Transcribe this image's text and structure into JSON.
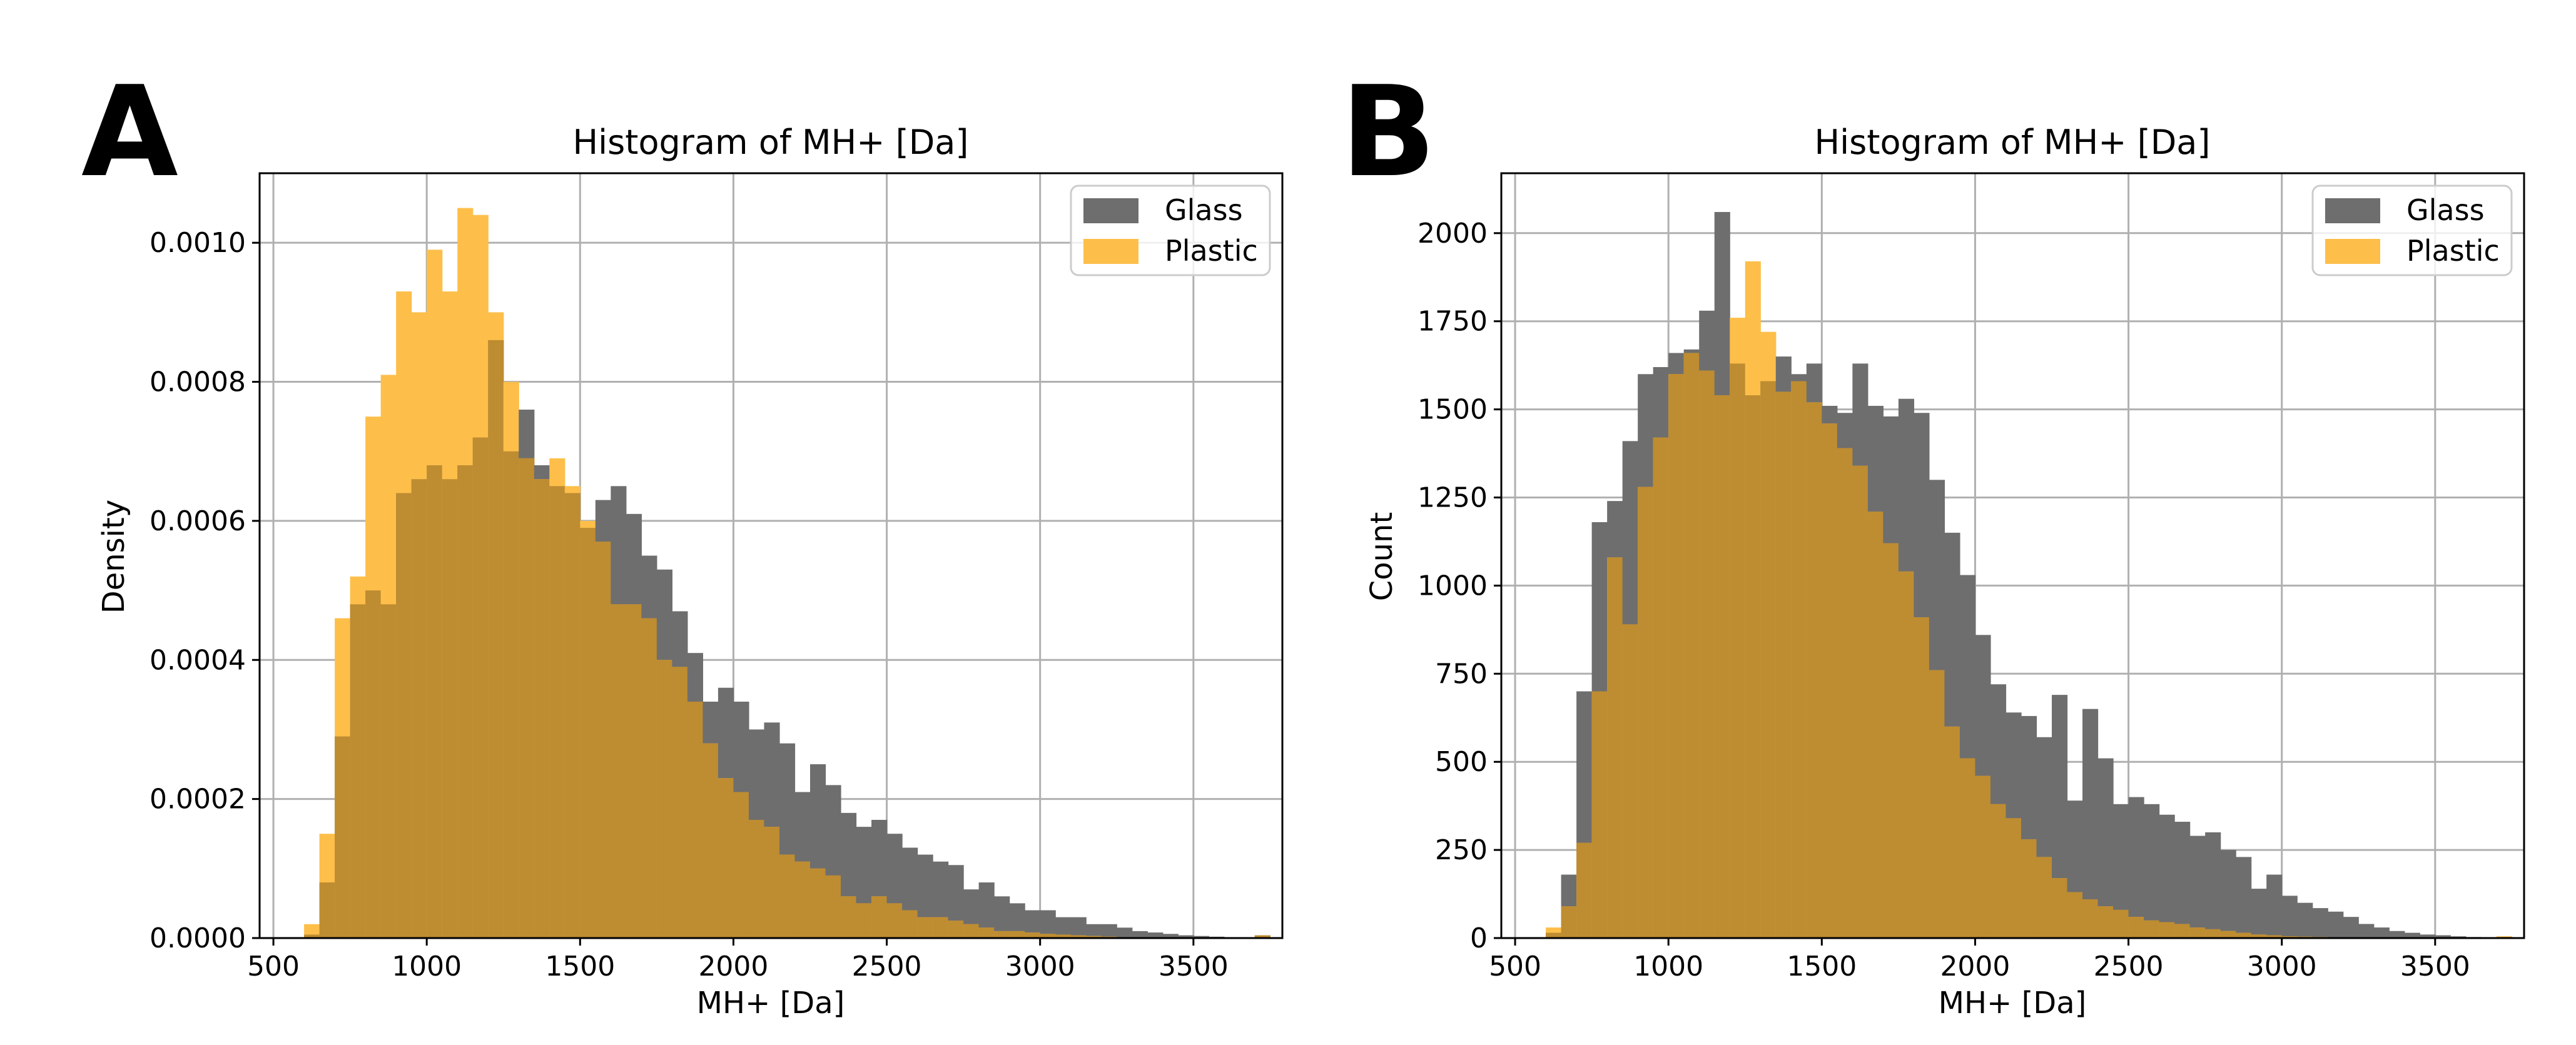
{
  "colors": {
    "glass": "#6e6e6e",
    "plastic": "#fdbf4a",
    "overlap": "#be8c31",
    "grid": "#b0b0b0"
  },
  "chart_data": [
    {
      "panel": "A",
      "type": "bar",
      "title": "Histogram of MH+ [Da]",
      "xlabel": "MH+ [Da]",
      "ylabel": "Density",
      "xlim": [
        455,
        3790
      ],
      "ylim": [
        0,
        0.0011
      ],
      "xticks": [
        500,
        1000,
        1500,
        2000,
        2500,
        3000,
        3500
      ],
      "yticks": [
        0,
        0.0002,
        0.0004,
        0.0006,
        0.0008,
        0.001
      ],
      "ytick_labels": [
        "0.0000",
        "0.0002",
        "0.0004",
        "0.0006",
        "0.0008",
        "0.0010"
      ],
      "grid": true,
      "legend_position": "top-right",
      "legend": [
        "Glass",
        "Plastic"
      ],
      "bin_edges": [
        600,
        650,
        700,
        750,
        800,
        850,
        900,
        950,
        1000,
        1050,
        1100,
        1150,
        1200,
        1250,
        1300,
        1350,
        1400,
        1450,
        1500,
        1550,
        1600,
        1650,
        1700,
        1750,
        1800,
        1850,
        1900,
        1950,
        2000,
        2050,
        2100,
        2150,
        2200,
        2250,
        2300,
        2350,
        2400,
        2450,
        2500,
        2550,
        2600,
        2650,
        2700,
        2750,
        2800,
        2850,
        2900,
        2950,
        3000,
        3050,
        3100,
        3150,
        3200,
        3250,
        3300,
        3350,
        3400,
        3450,
        3500,
        3550,
        3600,
        3650,
        3700,
        3750
      ],
      "series": [
        {
          "name": "Glass",
          "values": [
            5e-06,
            8e-05,
            0.00029,
            0.00048,
            0.0005,
            0.00048,
            0.00064,
            0.00066,
            0.00068,
            0.00066,
            0.00068,
            0.00072,
            0.00086,
            0.0007,
            0.00076,
            0.00068,
            0.00065,
            0.00064,
            0.00059,
            0.00063,
            0.00065,
            0.00061,
            0.00055,
            0.00053,
            0.00047,
            0.00041,
            0.00034,
            0.00036,
            0.00034,
            0.0003,
            0.00031,
            0.00028,
            0.00021,
            0.00025,
            0.00022,
            0.00018,
            0.00016,
            0.00017,
            0.00015,
            0.00013,
            0.00012,
            0.00011,
            0.000105,
            7e-05,
            8e-05,
            6e-05,
            5e-05,
            4e-05,
            4e-05,
            3e-05,
            3e-05,
            2e-05,
            2e-05,
            1.5e-05,
            1e-05,
            8e-06,
            6e-06,
            4e-06,
            3e-06,
            2e-06,
            1e-06,
            1e-06,
            4e-06
          ]
        },
        {
          "name": "Plastic",
          "values": [
            2e-05,
            0.00015,
            0.00046,
            0.00052,
            0.00075,
            0.00081,
            0.00093,
            0.0009,
            0.00099,
            0.00093,
            0.00105,
            0.00104,
            0.0009,
            0.0008,
            0.00069,
            0.00066,
            0.00069,
            0.00065,
            0.0006,
            0.00057,
            0.00048,
            0.00048,
            0.00046,
            0.0004,
            0.00039,
            0.00034,
            0.00028,
            0.00023,
            0.00021,
            0.00017,
            0.00016,
            0.00012,
            0.00011,
            0.0001,
            9e-05,
            6e-05,
            5e-05,
            6e-05,
            5e-05,
            4e-05,
            3e-05,
            3e-05,
            2.5e-05,
            2e-05,
            1.5e-05,
            1e-05,
            1e-05,
            8e-06,
            6e-06,
            5e-06,
            4e-06,
            3e-06,
            2e-06,
            1e-06,
            1e-06,
            1e-06,
            1e-06,
            1e-06,
            5e-07,
            5e-07,
            5e-07,
            5e-07,
            4e-06
          ]
        }
      ]
    },
    {
      "panel": "B",
      "type": "bar",
      "title": "Histogram of MH+ [Da]",
      "xlabel": "MH+ [Da]",
      "ylabel": "Count",
      "xlim": [
        455,
        3790
      ],
      "ylim": [
        0,
        2170
      ],
      "xticks": [
        500,
        1000,
        1500,
        2000,
        2500,
        3000,
        3500
      ],
      "yticks": [
        0,
        250,
        500,
        750,
        1000,
        1250,
        1500,
        1750,
        2000
      ],
      "ytick_labels": [
        "0",
        "250",
        "500",
        "750",
        "1000",
        "1250",
        "1500",
        "1750",
        "2000"
      ],
      "grid": true,
      "legend_position": "top-right",
      "legend": [
        "Glass",
        "Plastic"
      ],
      "bin_edges": [
        600,
        650,
        700,
        750,
        800,
        850,
        900,
        950,
        1000,
        1050,
        1100,
        1150,
        1200,
        1250,
        1300,
        1350,
        1400,
        1450,
        1500,
        1550,
        1600,
        1650,
        1700,
        1750,
        1800,
        1850,
        1900,
        1950,
        2000,
        2050,
        2100,
        2150,
        2200,
        2250,
        2300,
        2350,
        2400,
        2450,
        2500,
        2550,
        2600,
        2650,
        2700,
        2750,
        2800,
        2850,
        2900,
        2950,
        3000,
        3050,
        3100,
        3150,
        3200,
        3250,
        3300,
        3350,
        3400,
        3450,
        3500,
        3550,
        3600,
        3650,
        3700,
        3750
      ],
      "series": [
        {
          "name": "Glass",
          "values": [
            15,
            180,
            700,
            1180,
            1240,
            1410,
            1600,
            1620,
            1660,
            1670,
            1780,
            2060,
            1630,
            1540,
            1580,
            1650,
            1600,
            1630,
            1510,
            1490,
            1630,
            1510,
            1480,
            1530,
            1490,
            1300,
            1150,
            1030,
            860,
            720,
            640,
            630,
            570,
            690,
            390,
            650,
            510,
            380,
            400,
            380,
            350,
            330,
            290,
            300,
            250,
            230,
            140,
            180,
            120,
            100,
            85,
            75,
            60,
            40,
            30,
            20,
            15,
            10,
            8,
            5,
            3,
            2,
            3
          ]
        },
        {
          "name": "Plastic",
          "values": [
            30,
            90,
            270,
            700,
            1080,
            890,
            1280,
            1420,
            1600,
            1660,
            1610,
            1540,
            1760,
            1920,
            1720,
            1550,
            1580,
            1520,
            1460,
            1390,
            1340,
            1210,
            1120,
            1040,
            910,
            760,
            600,
            510,
            460,
            380,
            340,
            280,
            230,
            170,
            130,
            110,
            90,
            80,
            60,
            50,
            45,
            40,
            30,
            25,
            20,
            15,
            10,
            8,
            5,
            4,
            3,
            2,
            2,
            1,
            1,
            1,
            1,
            1,
            1,
            1,
            1,
            1,
            5
          ]
        }
      ]
    }
  ],
  "panels": [
    {
      "letter": "A",
      "title": "Histogram of MH+ [Da]",
      "xlabel": "MH+ [Da]",
      "ylabel": "Density",
      "legend": [
        "Glass",
        "Plastic"
      ]
    },
    {
      "letter": "B",
      "title": "Histogram of MH+ [Da]",
      "xlabel": "MH+ [Da]",
      "ylabel": "Count",
      "legend": [
        "Glass",
        "Plastic"
      ]
    }
  ]
}
